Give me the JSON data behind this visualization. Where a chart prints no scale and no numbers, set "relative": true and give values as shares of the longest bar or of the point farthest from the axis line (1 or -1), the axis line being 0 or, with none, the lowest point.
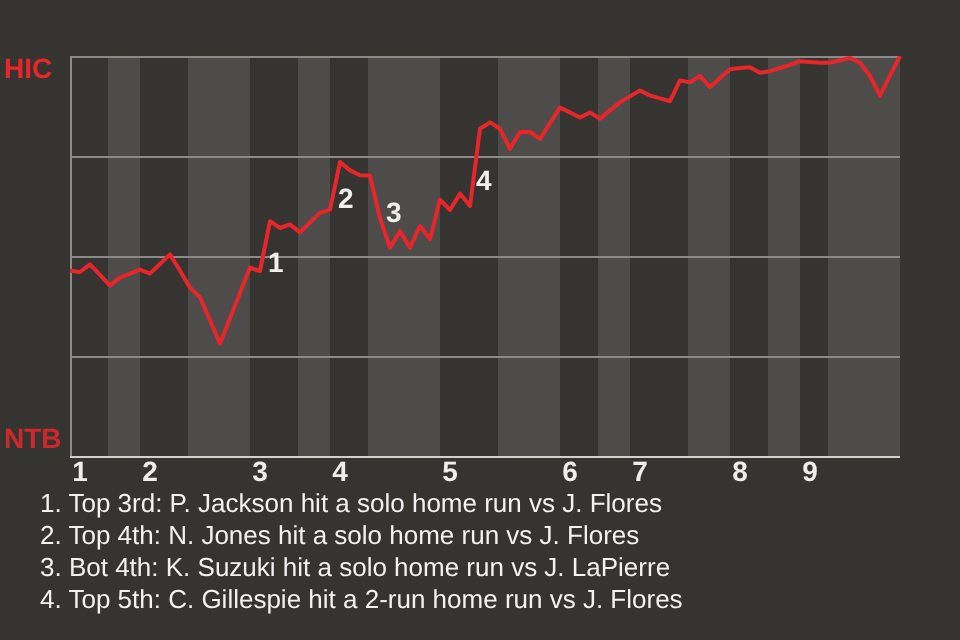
{
  "chart_data": {
    "type": "line",
    "relative": true,
    "grid": true,
    "legend": false,
    "marker": "none",
    "line_style": "solid",
    "categories": [
      null,
      "1",
      null,
      null,
      null,
      null,
      null,
      null,
      "2",
      null,
      null,
      null,
      null,
      null,
      null,
      null,
      null,
      null,
      null,
      "3",
      null,
      null,
      null,
      null,
      null,
      null,
      null,
      "4",
      null,
      null,
      null,
      null,
      null,
      null,
      null,
      null,
      null,
      null,
      "5",
      null,
      null,
      null,
      null,
      null,
      null,
      null,
      null,
      null,
      null,
      null,
      "6",
      null,
      null,
      null,
      null,
      null,
      null,
      "7",
      null,
      null,
      null,
      null,
      null,
      null,
      null,
      null,
      null,
      "8",
      null,
      null,
      null,
      null,
      null,
      null,
      "9",
      null,
      null,
      null,
      null,
      null,
      null,
      null,
      null,
      null
    ],
    "series": [
      {
        "color": "#e8262a",
        "values": [
          0.463,
          0.46,
          0.479,
          0.453,
          0.426,
          0.446,
          0.456,
          0.466,
          0.456,
          0.48,
          0.504,
          0.463,
          0.421,
          0.397,
          0.339,
          0.281,
          0.344,
          0.408,
          0.471,
          0.462,
          0.587,
          0.57,
          0.579,
          0.559,
          0.584,
          0.608,
          0.616,
          0.735,
          0.714,
          0.702,
          0.701,
          0.595,
          0.521,
          0.562,
          0.521,
          0.575,
          0.542,
          0.641,
          0.615,
          0.656,
          0.625,
          0.818,
          0.834,
          0.818,
          0.768,
          0.81,
          0.81,
          0.793,
          0.832,
          0.871,
          0.859,
          0.846,
          0.859,
          0.843,
          0.864,
          0.884,
          0.899,
          0.914,
          0.901,
          0.894,
          0.887,
          0.939,
          0.934,
          0.95,
          0.922,
          0.945,
          0.967,
          0.97,
          0.972,
          0.958,
          0.962,
          0.97,
          0.978,
          0.987,
          0.985,
          0.983,
          0.983,
          0.989,
          0.995,
          0.983,
          0.95,
          0.901,
          0.951,
          1.0
        ]
      }
    ],
    "annotations": [
      "HIC",
      "NTB",
      "1",
      "2",
      "3",
      "4",
      "1. Top 3rd: P. Jackson hit a solo home run vs J. Flores",
      "2. Top 4th: N. Jones hit a solo home run vs J. Flores",
      "3. Bot 4th: K. Suzuki hit a solo home run vs J. LaPierre",
      "4. Top 5th: C. Gillespie hit a 2-run home run vs J. Flores"
    ]
  }
}
